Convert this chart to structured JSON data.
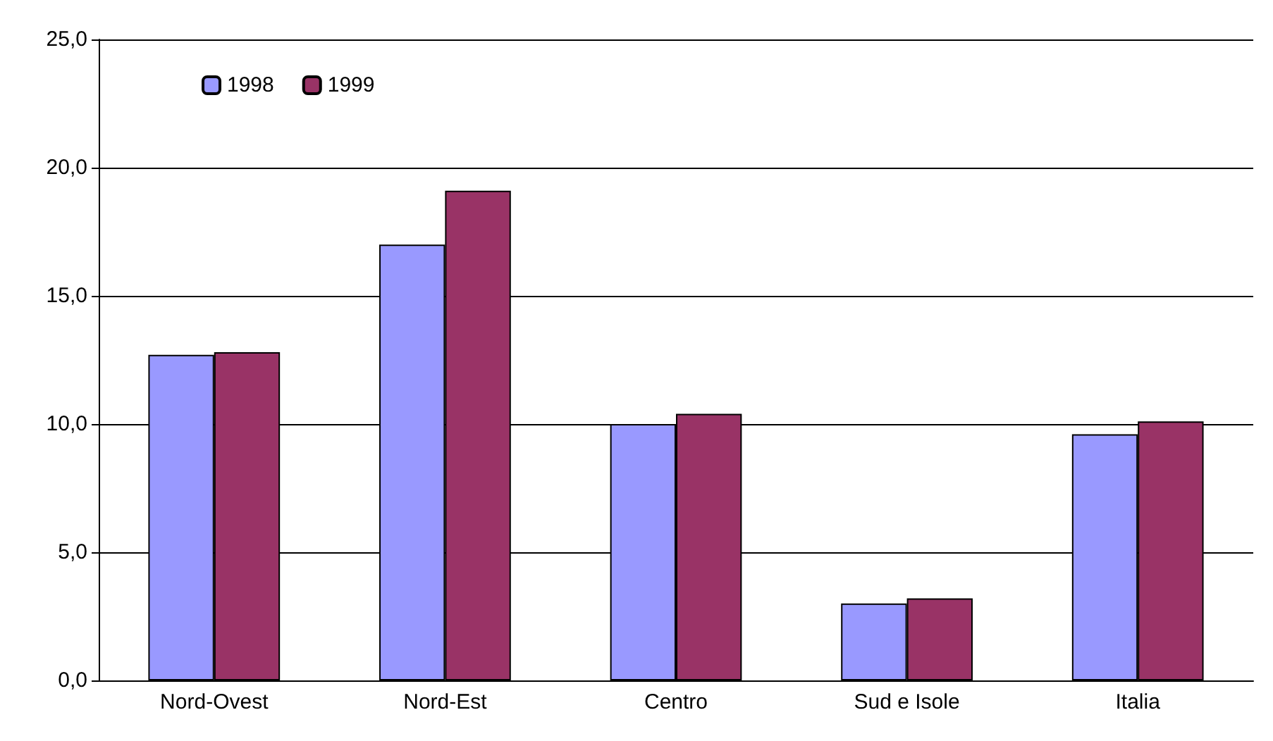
{
  "chart_data": {
    "type": "bar",
    "categories": [
      "Nord-Ovest",
      "Nord-Est",
      "Centro",
      "Sud e Isole",
      "Italia"
    ],
    "series": [
      {
        "name": "1998",
        "color": "#9999ff",
        "values": [
          12.7,
          17.0,
          10.0,
          3.0,
          9.6
        ]
      },
      {
        "name": "1999",
        "color": "#993366",
        "values": [
          12.8,
          19.1,
          10.4,
          3.2,
          10.1
        ]
      }
    ],
    "ylim": [
      0,
      25
    ],
    "yticks": [
      {
        "value": 0,
        "label": "0,0"
      },
      {
        "value": 5,
        "label": "5,0"
      },
      {
        "value": 10,
        "label": "10,0"
      },
      {
        "value": 15,
        "label": "15,0"
      },
      {
        "value": 20,
        "label": "20,0"
      },
      {
        "value": 25,
        "label": "25,0"
      }
    ],
    "grid": "y",
    "legend": "top left"
  }
}
